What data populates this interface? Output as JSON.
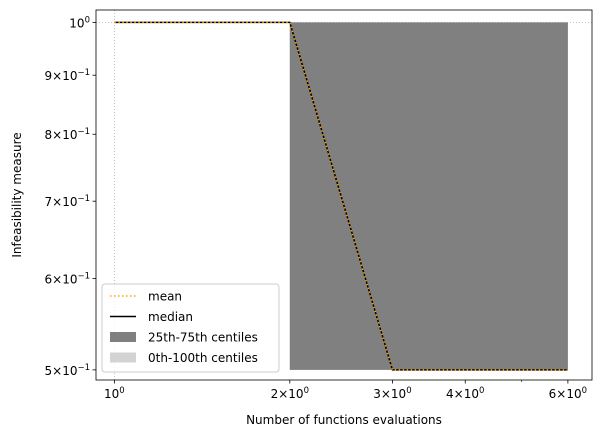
{
  "chart_data": {
    "type": "line",
    "xlabel": "Number of functions evaluations",
    "ylabel": "Infeasibility measure",
    "xscale": "log",
    "yscale": "log",
    "xlim": [
      0.93,
      6.6
    ],
    "ylim": [
      0.49,
      1.025
    ],
    "grid": "dotted",
    "x": [
      1,
      2,
      3,
      4,
      5,
      6
    ],
    "series": [
      {
        "name": "mean",
        "values": [
          1.0,
          1.0,
          0.5,
          0.5,
          0.5,
          0.5
        ],
        "color": "#ffa500",
        "style": "dotted"
      },
      {
        "name": "median",
        "values": [
          1.0,
          1.0,
          0.5,
          0.5,
          0.5,
          0.5
        ],
        "color": "#000000",
        "style": "solid"
      }
    ],
    "bands": [
      {
        "name": "25th-75th centiles",
        "color": "#808080",
        "x": [
          2,
          3,
          4,
          5,
          6
        ],
        "lower": [
          0.5,
          0.5,
          0.5,
          0.5,
          0.5
        ],
        "upper": [
          1.0,
          1.0,
          1.0,
          1.0,
          1.0
        ]
      },
      {
        "name": "0th-100th centiles",
        "color": "#d3d3d3",
        "x": [
          2,
          3,
          4,
          5,
          6
        ],
        "lower": [
          0.5,
          0.5,
          0.5,
          0.5,
          0.5
        ],
        "upper": [
          1.0,
          1.0,
          1.0,
          1.0,
          1.0
        ]
      }
    ],
    "x_ticks": [
      {
        "value": 1,
        "base": "10",
        "exp": "0"
      },
      {
        "value": 2,
        "base": "2×10",
        "exp": "0"
      },
      {
        "value": 3,
        "base": "3×10",
        "exp": "0"
      },
      {
        "value": 4,
        "base": "4×10",
        "exp": "0"
      },
      {
        "value": 6,
        "base": "6×10",
        "exp": "0"
      }
    ],
    "y_ticks": [
      {
        "value": 1.0,
        "base": "10",
        "exp": "0"
      },
      {
        "value": 0.9,
        "base": "9×10",
        "exp": "−1"
      },
      {
        "value": 0.8,
        "base": "8×10",
        "exp": "−1"
      },
      {
        "value": 0.7,
        "base": "7×10",
        "exp": "−1"
      },
      {
        "value": 0.6,
        "base": "6×10",
        "exp": "−1"
      },
      {
        "value": 0.5,
        "base": "5×10",
        "exp": "−1"
      }
    ],
    "legend": {
      "position": "lower-left",
      "entries": [
        {
          "label": "mean",
          "kind": "line",
          "color": "#ffa500",
          "style": "dotted"
        },
        {
          "label": "median",
          "kind": "line",
          "color": "#000000",
          "style": "solid"
        },
        {
          "label": "25th-75th centiles",
          "kind": "patch",
          "color": "#808080"
        },
        {
          "label": "0th-100th centiles",
          "kind": "patch",
          "color": "#d3d3d3"
        }
      ]
    }
  }
}
